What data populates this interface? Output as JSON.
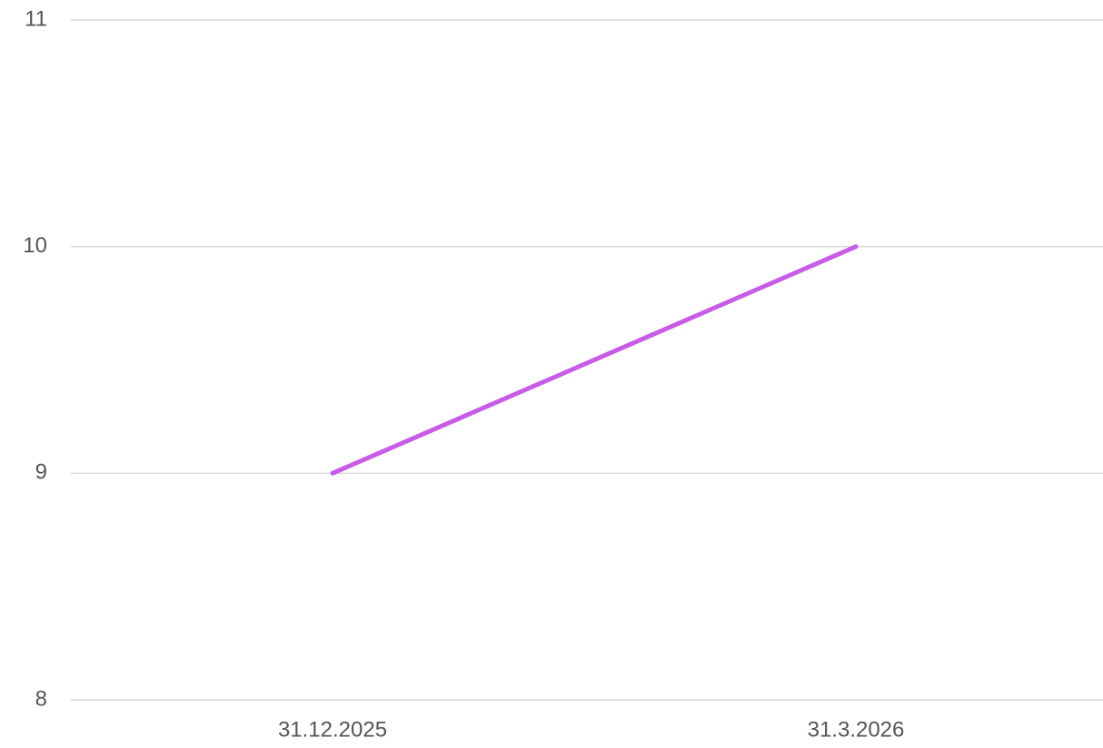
{
  "chart_data": {
    "type": "line",
    "categories": [
      "31.12.2025",
      "31.3.2026"
    ],
    "values": [
      9,
      10
    ],
    "color": "#c95ce6",
    "ylim": [
      8,
      11
    ],
    "yticks": [
      8,
      9,
      10,
      11
    ],
    "grid": true
  }
}
